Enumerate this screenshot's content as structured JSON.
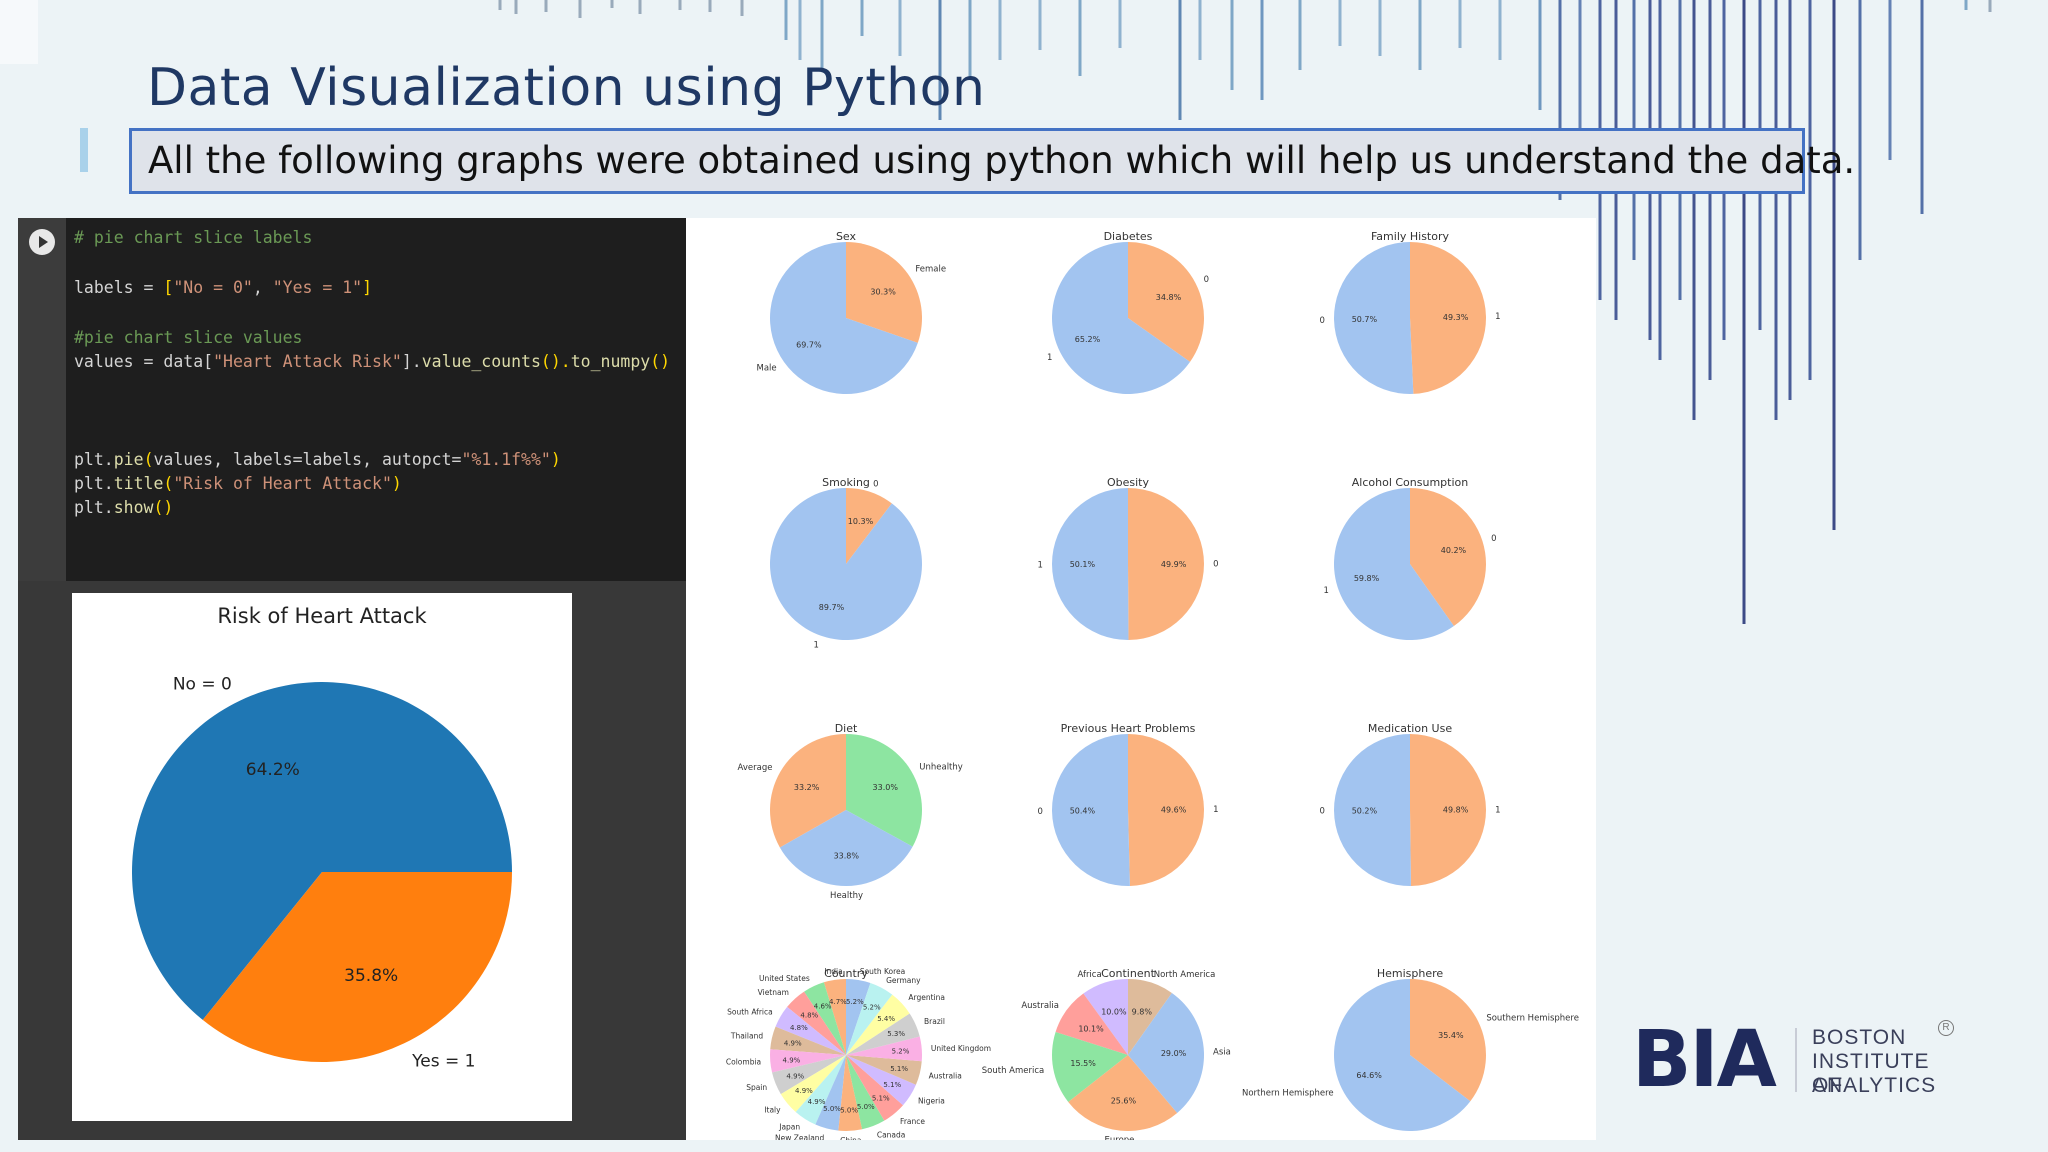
{
  "slide": {
    "title": "Data Visualization using Python",
    "subtitle": "All the following graphs were obtained using python which will help us understand the data."
  },
  "notebook": {
    "code_lines": [
      {
        "parts": [
          {
            "t": "# pie chart slice labels",
            "c": "comment"
          }
        ]
      },
      {
        "parts": []
      },
      {
        "parts": [
          {
            "t": "labels = ",
            "c": ""
          },
          {
            "t": "[",
            "c": "bracket"
          },
          {
            "t": "\"No = 0\"",
            "c": "str"
          },
          {
            "t": ", ",
            "c": ""
          },
          {
            "t": "\"Yes = 1\"",
            "c": "str"
          },
          {
            "t": "]",
            "c": "bracket"
          }
        ]
      },
      {
        "parts": []
      },
      {
        "parts": [
          {
            "t": "#pie chart slice values",
            "c": "comment"
          }
        ]
      },
      {
        "parts": [
          {
            "t": "values = data[",
            "c": ""
          },
          {
            "t": "\"Heart Attack Risk\"",
            "c": "str"
          },
          {
            "t": "].",
            "c": ""
          },
          {
            "t": "value_counts",
            "c": "fn"
          },
          {
            "t": "().",
            "c": "bracket"
          },
          {
            "t": "to_numpy",
            "c": "fn"
          },
          {
            "t": "()",
            "c": "bracket"
          }
        ]
      },
      {
        "parts": []
      },
      {
        "parts": []
      },
      {
        "parts": []
      },
      {
        "parts": [
          {
            "t": "plt.",
            "c": ""
          },
          {
            "t": "pie",
            "c": "fn"
          },
          {
            "t": "(",
            "c": "bracket"
          },
          {
            "t": "values, labels=labels, autopct=",
            "c": ""
          },
          {
            "t": "\"%1.1f%%\"",
            "c": "str"
          },
          {
            "t": ")",
            "c": "bracket"
          }
        ]
      },
      {
        "parts": [
          {
            "t": "plt.",
            "c": ""
          },
          {
            "t": "title",
            "c": "fn"
          },
          {
            "t": "(",
            "c": "bracket"
          },
          {
            "t": "\"Risk of Heart Attack\"",
            "c": "str"
          },
          {
            "t": ")",
            "c": "bracket"
          }
        ]
      },
      {
        "parts": [
          {
            "t": "plt.",
            "c": ""
          },
          {
            "t": "show",
            "c": "fn"
          },
          {
            "t": "()",
            "c": "bracket"
          }
        ]
      }
    ],
    "output_chart": {
      "title": "Risk of Heart Attack",
      "slices": [
        {
          "label": "No = 0",
          "pct": "64.2%",
          "value": 64.2,
          "color": "#1f77b4"
        },
        {
          "label": "Yes = 1",
          "pct": "35.8%",
          "value": 35.8,
          "color": "#ff7f0e"
        }
      ]
    }
  },
  "chart_data": [
    {
      "type": "pie",
      "title": "Sex",
      "labels": [
        "Female",
        "Male"
      ],
      "values": [
        30.3,
        69.7
      ],
      "pct_labels": [
        "30.3%",
        "69.7%"
      ],
      "colors": [
        "#fbb27e",
        "#a2c4f0"
      ]
    },
    {
      "type": "pie",
      "title": "Diabetes",
      "labels": [
        "0",
        "1"
      ],
      "values": [
        34.8,
        65.2
      ],
      "pct_labels": [
        "34.8%",
        "65.2%"
      ],
      "colors": [
        "#fbb27e",
        "#a2c4f0"
      ]
    },
    {
      "type": "pie",
      "title": "Family History",
      "labels": [
        "1",
        "0"
      ],
      "values": [
        49.3,
        50.7
      ],
      "pct_labels": [
        "49.3%",
        "50.7%"
      ],
      "colors": [
        "#fbb27e",
        "#a2c4f0"
      ]
    },
    {
      "type": "pie",
      "title": "Smoking",
      "labels": [
        "0",
        "1"
      ],
      "values": [
        10.3,
        89.7
      ],
      "pct_labels": [
        "10.3%",
        "89.7%"
      ],
      "colors": [
        "#fbb27e",
        "#a2c4f0"
      ]
    },
    {
      "type": "pie",
      "title": "Obesity",
      "labels": [
        "0",
        "1"
      ],
      "values": [
        49.9,
        50.1
      ],
      "pct_labels": [
        "49.9%",
        "50.1%"
      ],
      "colors": [
        "#fbb27e",
        "#a2c4f0"
      ]
    },
    {
      "type": "pie",
      "title": "Alcohol Consumption",
      "labels": [
        "0",
        "1"
      ],
      "values": [
        40.2,
        59.8
      ],
      "pct_labels": [
        "40.2%",
        "59.8%"
      ],
      "colors": [
        "#fbb27e",
        "#a2c4f0"
      ]
    },
    {
      "type": "pie",
      "title": "Diet",
      "labels": [
        "Unhealthy",
        "Average",
        "Healthy"
      ],
      "values": [
        33.0,
        33.2,
        33.8
      ],
      "pct_labels": [
        "33.0%",
        "33.2%",
        "33.8%"
      ],
      "colors": [
        "#8de5a1",
        "#fbb27e",
        "#a2c4f0"
      ]
    },
    {
      "type": "pie",
      "title": "Previous Heart Problems",
      "labels": [
        "1",
        "0"
      ],
      "values": [
        49.6,
        50.4
      ],
      "pct_labels": [
        "49.6%",
        "50.4%"
      ],
      "colors": [
        "#fbb27e",
        "#a2c4f0"
      ]
    },
    {
      "type": "pie",
      "title": "Medication Use",
      "labels": [
        "1",
        "0"
      ],
      "values": [
        49.8,
        50.2
      ],
      "pct_labels": [
        "49.8%",
        "50.2%"
      ],
      "colors": [
        "#fbb27e",
        "#a2c4f0"
      ]
    },
    {
      "type": "pie",
      "title": "Country",
      "labels": [
        "South Korea",
        "India",
        "United States",
        "Vietnam",
        "South Africa",
        "Thailand",
        "Colombia",
        "Spain",
        "Italy",
        "Japan",
        "New Zealand",
        "China",
        "Canada",
        "France",
        "Nigeria",
        "Australia",
        "United Kingdom",
        "Brazil",
        "Argentina",
        "Germany"
      ],
      "values": [
        5.2,
        4.7,
        4.6,
        4.8,
        4.8,
        4.9,
        4.9,
        4.9,
        4.9,
        4.9,
        5.0,
        5.0,
        5.0,
        5.1,
        5.1,
        5.1,
        5.2,
        5.3,
        5.4,
        5.2
      ],
      "pct_labels": [
        "5.2%",
        "4.7%",
        "4.6%",
        "4.8%",
        "4.8%",
        "4.9%",
        "4.9%",
        "4.9%",
        "4.9%",
        "4.9%",
        "5.0%",
        "5.0%",
        "5.0%",
        "5.1%",
        "5.1%",
        "5.1%",
        "5.2%",
        "5.3%",
        "5.4%",
        "5.2%"
      ],
      "colors": [
        "#a2c4f0",
        "#fbb27e",
        "#8de5a1",
        "#ff9f9b",
        "#d0bbff",
        "#debb9b",
        "#fab0e4",
        "#cfcfcf",
        "#fffea3",
        "#b9f2f0",
        "#a2c4f0",
        "#fbb27e",
        "#8de5a1",
        "#ff9f9b",
        "#d0bbff",
        "#debb9b",
        "#fab0e4",
        "#cfcfcf",
        "#fffea3",
        "#b9f2f0"
      ]
    },
    {
      "type": "pie",
      "title": "Continent",
      "labels": [
        "North America",
        "Africa",
        "Australia",
        "South America",
        "Europe",
        "Asia"
      ],
      "values": [
        9.8,
        10.0,
        10.1,
        15.5,
        25.6,
        29.0
      ],
      "pct_labels": [
        "9.8%",
        "10.0%",
        "10.1%",
        "15.5%",
        "25.6%",
        "29.0%"
      ],
      "colors": [
        "#debb9b",
        "#d0bbff",
        "#ff9f9b",
        "#8de5a1",
        "#fbb27e",
        "#a2c4f0"
      ]
    },
    {
      "type": "pie",
      "title": "Hemisphere",
      "labels": [
        "Southern Hemisphere",
        "Northern Hemisphere"
      ],
      "values": [
        35.4,
        64.6
      ],
      "pct_labels": [
        "35.4%",
        "64.6%"
      ],
      "colors": [
        "#fbb27e",
        "#a2c4f0"
      ]
    }
  ],
  "logo": {
    "mark": "BIA",
    "line1": "BOSTON",
    "line2": "INSTITUTE OF",
    "line3": "ANALYTICS",
    "reg": "R"
  }
}
